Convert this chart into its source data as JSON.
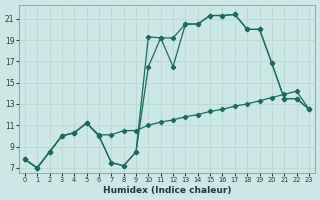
{
  "xlabel": "Humidex (Indice chaleur)",
  "bg_color": "#cce8e6",
  "grid_color": "#b8d8d4",
  "line_color": "#1a6b5a",
  "xlim": [
    -0.5,
    23.5
  ],
  "ylim": [
    6.5,
    22.3
  ],
  "xticks": [
    0,
    1,
    2,
    3,
    4,
    5,
    6,
    7,
    8,
    9,
    10,
    11,
    12,
    13,
    14,
    15,
    16,
    17,
    18,
    19,
    20,
    21,
    22,
    23
  ],
  "yticks": [
    7,
    9,
    11,
    13,
    15,
    17,
    19,
    21
  ],
  "line1": {
    "x": [
      0,
      1,
      2,
      3,
      4,
      5,
      6,
      7,
      8,
      9,
      10,
      11,
      12,
      13,
      14,
      15,
      16,
      17,
      18,
      19,
      20,
      21,
      22,
      23
    ],
    "y": [
      7.8,
      7.0,
      8.5,
      10.0,
      10.3,
      11.2,
      10.1,
      10.1,
      10.5,
      10.5,
      11.0,
      11.3,
      11.5,
      11.8,
      12.0,
      12.3,
      12.5,
      12.8,
      13.0,
      13.3,
      13.6,
      13.9,
      14.2,
      12.5
    ]
  },
  "line2": {
    "x": [
      0,
      1,
      2,
      3,
      4,
      5,
      6,
      7,
      8,
      9,
      10,
      11,
      12,
      13,
      14,
      15,
      16,
      17,
      18,
      19,
      20,
      21,
      22,
      23
    ],
    "y": [
      7.8,
      7.0,
      8.5,
      10.0,
      10.3,
      11.2,
      10.0,
      7.5,
      7.2,
      8.5,
      19.3,
      19.2,
      16.5,
      20.5,
      20.5,
      21.3,
      21.3,
      21.4,
      20.0,
      20.0,
      16.8,
      13.5,
      13.5,
      12.5
    ]
  },
  "line3": {
    "x": [
      0,
      1,
      2,
      3,
      4,
      5,
      6,
      7,
      8,
      9,
      10,
      11,
      12,
      13,
      14,
      15,
      16,
      17,
      18,
      19,
      20,
      21,
      22,
      23
    ],
    "y": [
      7.8,
      7.0,
      8.5,
      10.0,
      10.3,
      11.2,
      10.0,
      7.5,
      7.2,
      8.5,
      16.5,
      19.2,
      19.2,
      20.5,
      20.5,
      21.3,
      21.3,
      21.4,
      20.0,
      20.0,
      16.8,
      13.5,
      13.5,
      12.5
    ]
  }
}
